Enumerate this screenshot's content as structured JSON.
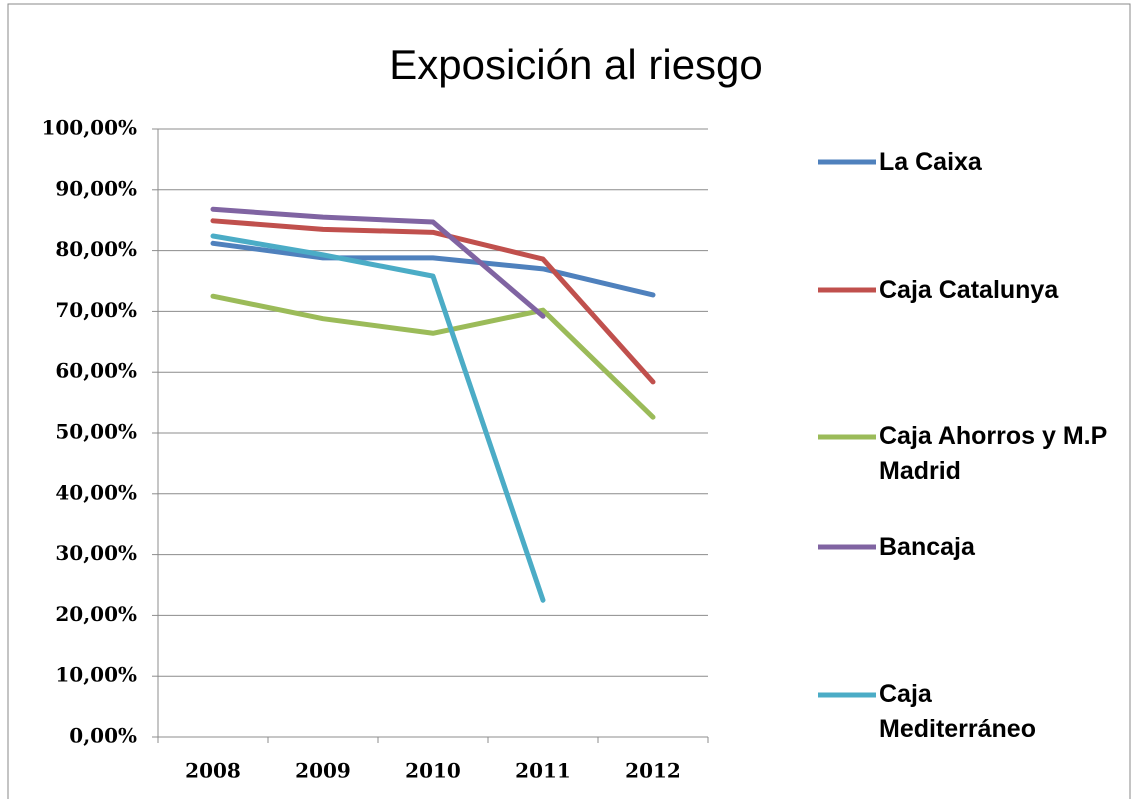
{
  "chart_data": {
    "type": "line",
    "title": "Exposición al riesgo",
    "categories": [
      "2008",
      "2009",
      "2010",
      "2011",
      "2012"
    ],
    "series": [
      {
        "name": "La Caixa",
        "color": "#4f81bd",
        "values": [
          81.2,
          78.8,
          78.8,
          77.0,
          72.7
        ]
      },
      {
        "name": "Caja Catalunya",
        "color": "#c0504d",
        "values": [
          84.9,
          83.5,
          83.0,
          78.6,
          58.4
        ]
      },
      {
        "name": "Caja Ahorros y M.P Madrid",
        "color": "#9bbb59",
        "values": [
          72.5,
          68.8,
          66.4,
          70.2,
          52.6
        ]
      },
      {
        "name": "Bancaja",
        "color": "#8064a2",
        "values": [
          86.8,
          85.5,
          84.7,
          69.2,
          null
        ]
      },
      {
        "name": "Caja Mediterráneo",
        "color": "#4bacc6",
        "values": [
          82.4,
          79.3,
          75.8,
          22.5,
          null
        ]
      }
    ],
    "ylim": [
      0,
      100
    ],
    "yticks": [
      {
        "value": 0,
        "label": "0,00%"
      },
      {
        "value": 10,
        "label": "10,00%"
      },
      {
        "value": 20,
        "label": "20,00%"
      },
      {
        "value": 30,
        "label": "30,00%"
      },
      {
        "value": 40,
        "label": "40,00%"
      },
      {
        "value": 50,
        "label": "50,00%"
      },
      {
        "value": 60,
        "label": "60,00%"
      },
      {
        "value": 70,
        "label": "70,00%"
      },
      {
        "value": 80,
        "label": "80,00%"
      },
      {
        "value": 90,
        "label": "90,00%"
      },
      {
        "value": 100,
        "label": "100,00%"
      }
    ],
    "grid": true,
    "legend": "right"
  }
}
